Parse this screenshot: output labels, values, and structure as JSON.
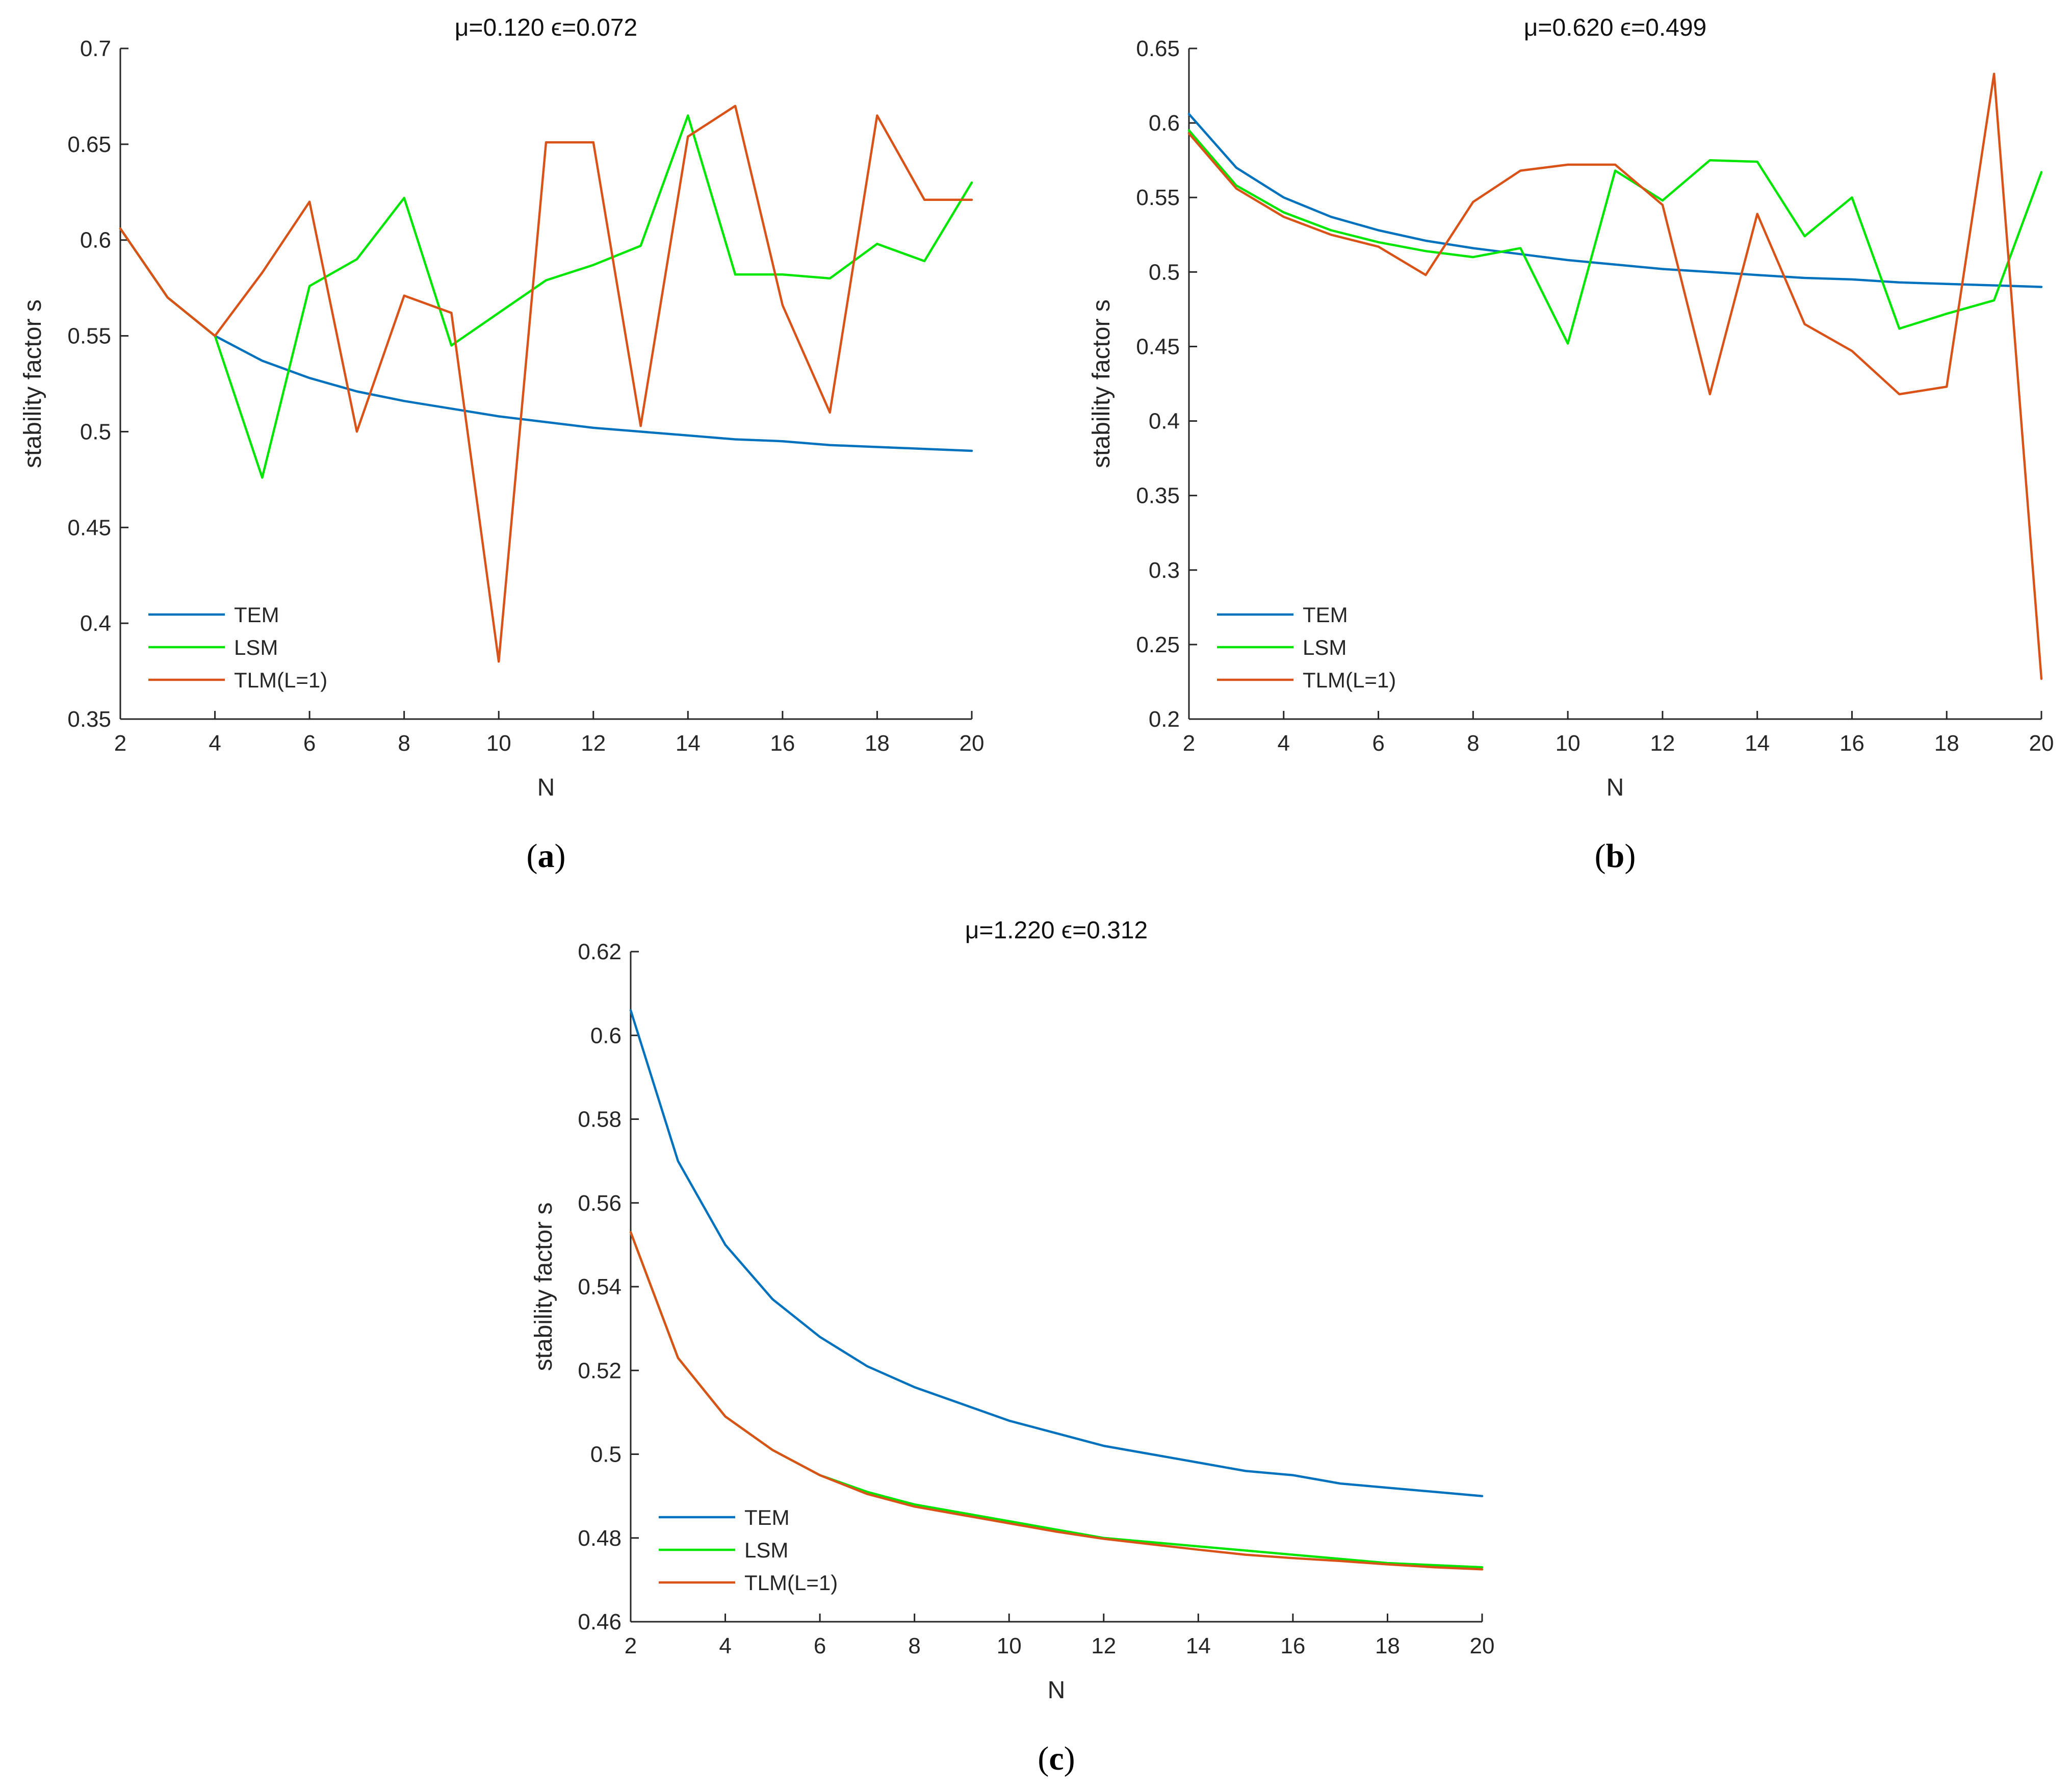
{
  "chart_data": [
    {
      "type": "line",
      "panel_label": "a",
      "title": "μ=0.120 ϵ=0.072",
      "xlabel": "N",
      "ylabel": "stability factor s",
      "xlim": [
        2,
        20
      ],
      "ylim": [
        0.35,
        0.7
      ],
      "xticks": [
        2,
        4,
        6,
        8,
        10,
        12,
        14,
        16,
        18,
        20
      ],
      "yticks": [
        0.35,
        0.4,
        0.45,
        0.5,
        0.55,
        0.6,
        0.65,
        0.7
      ],
      "ytick_labels": [
        "0.35",
        "0.4",
        "0.45",
        "0.5",
        "0.55",
        "0.6",
        "0.65",
        "0.7"
      ],
      "legend_position": "bottom-left",
      "x": [
        2,
        3,
        4,
        5,
        6,
        7,
        8,
        9,
        10,
        11,
        12,
        13,
        14,
        15,
        16,
        17,
        18,
        19,
        20
      ],
      "series": [
        {
          "name": "TEM",
          "color": "#0072BD",
          "values": [
            0.606,
            0.57,
            0.55,
            0.537,
            0.528,
            0.521,
            0.516,
            0.512,
            0.508,
            0.505,
            0.502,
            0.5,
            0.498,
            0.496,
            0.495,
            0.493,
            0.492,
            0.491,
            0.49
          ]
        },
        {
          "name": "LSM",
          "color": "#00E600",
          "values": [
            0.606,
            0.57,
            0.55,
            0.476,
            0.576,
            0.59,
            0.622,
            0.545,
            0.562,
            0.579,
            0.587,
            0.597,
            0.665,
            0.582,
            0.582,
            0.58,
            0.598,
            0.589,
            0.63
          ]
        },
        {
          "name": "TLM(L=1)",
          "color": "#D95319",
          "values": [
            0.606,
            0.57,
            0.55,
            0.583,
            0.62,
            0.5,
            0.571,
            0.562,
            0.38,
            0.651,
            0.651,
            0.503,
            0.654,
            0.67,
            0.566,
            0.51,
            0.665,
            0.621,
            0.621
          ]
        }
      ]
    },
    {
      "type": "line",
      "panel_label": "b",
      "title": "μ=0.620 ϵ=0.499",
      "xlabel": "N",
      "ylabel": "stability factor s",
      "xlim": [
        2,
        20
      ],
      "ylim": [
        0.2,
        0.65
      ],
      "xticks": [
        2,
        4,
        6,
        8,
        10,
        12,
        14,
        16,
        18,
        20
      ],
      "yticks": [
        0.2,
        0.25,
        0.3,
        0.35,
        0.4,
        0.45,
        0.5,
        0.55,
        0.6,
        0.65
      ],
      "ytick_labels": [
        "0.2",
        "0.25",
        "0.3",
        "0.35",
        "0.4",
        "0.45",
        "0.5",
        "0.55",
        "0.6",
        "0.65"
      ],
      "legend_position": "bottom-left",
      "x": [
        2,
        3,
        4,
        5,
        6,
        7,
        8,
        9,
        10,
        11,
        12,
        13,
        14,
        15,
        16,
        17,
        18,
        19,
        20
      ],
      "series": [
        {
          "name": "TEM",
          "color": "#0072BD",
          "values": [
            0.606,
            0.57,
            0.55,
            0.537,
            0.528,
            0.521,
            0.516,
            0.512,
            0.508,
            0.505,
            0.502,
            0.5,
            0.498,
            0.496,
            0.495,
            0.493,
            0.492,
            0.491,
            0.49
          ]
        },
        {
          "name": "LSM",
          "color": "#00E600",
          "values": [
            0.595,
            0.558,
            0.54,
            0.528,
            0.52,
            0.514,
            0.51,
            0.516,
            0.452,
            0.568,
            0.548,
            0.575,
            0.574,
            0.524,
            0.55,
            0.462,
            0.472,
            0.481,
            0.567
          ]
        },
        {
          "name": "TLM(L=1)",
          "color": "#D95319",
          "values": [
            0.593,
            0.556,
            0.537,
            0.525,
            0.517,
            0.498,
            0.547,
            0.568,
            0.572,
            0.572,
            0.545,
            0.418,
            0.539,
            0.465,
            0.447,
            0.418,
            0.423,
            0.633,
            0.227
          ]
        }
      ]
    },
    {
      "type": "line",
      "panel_label": "c",
      "title": "μ=1.220 ϵ=0.312",
      "xlabel": "N",
      "ylabel": "stability factor s",
      "xlim": [
        2,
        20
      ],
      "ylim": [
        0.46,
        0.62
      ],
      "xticks": [
        2,
        4,
        6,
        8,
        10,
        12,
        14,
        16,
        18,
        20
      ],
      "yticks": [
        0.46,
        0.48,
        0.5,
        0.52,
        0.54,
        0.56,
        0.58,
        0.6,
        0.62
      ],
      "ytick_labels": [
        "0.46",
        "0.48",
        "0.5",
        "0.52",
        "0.54",
        "0.56",
        "0.58",
        "0.6",
        "0.62"
      ],
      "legend_position": "bottom-left",
      "x": [
        2,
        3,
        4,
        5,
        6,
        7,
        8,
        9,
        10,
        11,
        12,
        13,
        14,
        15,
        16,
        17,
        18,
        19,
        20
      ],
      "series": [
        {
          "name": "TEM",
          "color": "#0072BD",
          "values": [
            0.606,
            0.57,
            0.55,
            0.537,
            0.528,
            0.521,
            0.516,
            0.512,
            0.508,
            0.505,
            0.502,
            0.5,
            0.498,
            0.496,
            0.495,
            0.493,
            0.492,
            0.491,
            0.49
          ]
        },
        {
          "name": "LSM",
          "color": "#00E600",
          "values": [
            0.553,
            0.523,
            0.509,
            0.501,
            0.495,
            0.491,
            0.488,
            0.486,
            0.484,
            0.482,
            0.48,
            0.479,
            0.478,
            0.477,
            0.476,
            0.475,
            0.474,
            0.4735,
            0.473
          ]
        },
        {
          "name": "TLM(L=1)",
          "color": "#D95319",
          "values": [
            0.553,
            0.523,
            0.509,
            0.501,
            0.495,
            0.4905,
            0.4875,
            0.4855,
            0.4835,
            0.4815,
            0.4798,
            0.4785,
            0.4772,
            0.476,
            0.4752,
            0.4745,
            0.4737,
            0.473,
            0.4725
          ]
        }
      ]
    }
  ]
}
